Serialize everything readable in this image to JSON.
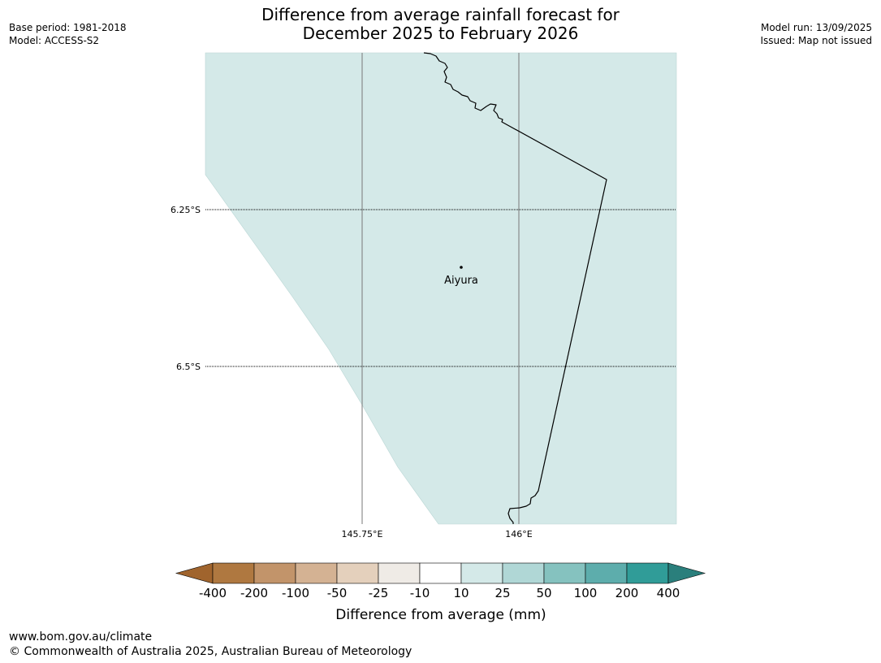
{
  "header": {
    "base_period": "Base period: 1981-2018",
    "model": "Model: ACCESS-S2",
    "model_run": "Model run: 13/09/2025",
    "issued": "Issued: Map not issued",
    "title_line1": "Difference from average rainfall forecast for",
    "title_line2": "December 2025 to February 2026"
  },
  "map": {
    "fill_color": "#d4e9e8",
    "gridlines": {
      "latitudes": [
        {
          "label": "6.25°S",
          "value": -6.25
        },
        {
          "label": "6.5°S",
          "value": -6.5
        }
      ],
      "longitudes": [
        {
          "label": "145.75°E",
          "value": 145.75
        },
        {
          "label": "146°E",
          "value": 146.0
        }
      ]
    },
    "places": [
      {
        "name": "Aiyura",
        "lon": 145.9,
        "lat": -6.35
      }
    ]
  },
  "legend": {
    "title": "Difference from average (mm)",
    "tick_labels": [
      "-400",
      "-200",
      "-100",
      "-50",
      "-25",
      "-10",
      "10",
      "25",
      "50",
      "100",
      "200",
      "400"
    ],
    "colors": [
      "#a0642d",
      "#af7840",
      "#c2946a",
      "#d4b293",
      "#e4d0bc",
      "#efebe6",
      "#ffffff",
      "#d4e9e8",
      "#b0d7d6",
      "#85c2bf",
      "#5dadac",
      "#309c98",
      "#2a7f7c"
    ]
  },
  "footer": {
    "url": "www.bom.gov.au/climate",
    "copyright": "© Commonwealth of Australia 2025, Australian Bureau of Meteorology"
  }
}
